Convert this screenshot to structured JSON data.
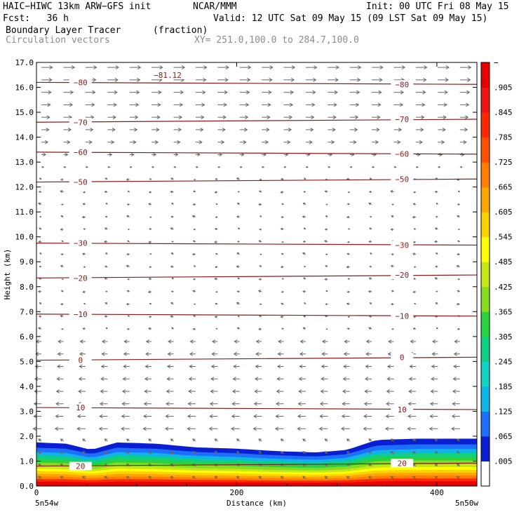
{
  "header": {
    "model": "HAIC−HIWC 13km ARW−GFS init",
    "org": "NCAR/MMM",
    "init": "Init: 00 UTC Fri 08 May 15",
    "fcst": "Fcst:   36 h",
    "valid": "Valid: 12 UTC Sat 09 May 15 (09 LST Sat 09 May 15)",
    "field": "Boundary Layer Tracer",
    "units": "(fraction)",
    "field2": "Circulation vectors",
    "xy": "XY= 251.0,100.0 to 284.7,100.0"
  },
  "chart_data": {
    "type": "heatmap",
    "xlabel": "Distance (km)",
    "ylabel": "Height (km)",
    "xlim": [
      0,
      440
    ],
    "ylim": [
      0,
      17
    ],
    "x_ticks": [
      "0",
      "200",
      "400"
    ],
    "x_end_labels": [
      "5n54w",
      "5n50w"
    ],
    "y_ticks": [
      "0.0",
      "1.0",
      "2.0",
      "3.0",
      "4.0",
      "5.0",
      "6.0",
      "7.0",
      "8.0",
      "9.0",
      "10.0",
      "11.0",
      "12.0",
      "13.0",
      "14.0",
      "15.0",
      "16.0",
      "17.0"
    ],
    "colorbar_labels": [
      ".005",
      ".065",
      ".125",
      ".185",
      ".245",
      ".305",
      ".365",
      ".425",
      ".485",
      ".545",
      ".605",
      ".665",
      ".725",
      ".785",
      ".845",
      ".905"
    ],
    "colorbar_top_label": "−",
    "colorbar_colors": [
      "#ffffff",
      "#0a1ed2",
      "#1e6eff",
      "#10b4e6",
      "#13d2c3",
      "#0fcf85",
      "#28d240",
      "#86dc1e",
      "#c6e61a",
      "#ffff00",
      "#fad200",
      "#ffa500",
      "#ff7d00",
      "#ff5000",
      "#ff2800",
      "#f01414",
      "#e60000"
    ],
    "tracer_layer": {
      "x": [
        0,
        30,
        55,
        80,
        120,
        160,
        200,
        240,
        280,
        310,
        340,
        380,
        420,
        440
      ],
      "top_km": [
        1.75,
        1.7,
        1.45,
        1.75,
        1.7,
        1.55,
        1.5,
        1.4,
        1.35,
        1.45,
        1.85,
        1.9,
        1.9,
        1.9
      ]
    },
    "temperature_contours": {
      "color": "#8b1a1a",
      "levels": [
        {
          "label": "20",
          "height_km": 0.8
        },
        {
          "label": "10",
          "height_km": 3.15
        },
        {
          "label": "0",
          "height_km": 5.05
        },
        {
          "label": "−10",
          "height_km": 6.9
        },
        {
          "label": "−20",
          "height_km": 8.35
        },
        {
          "label": "−30",
          "height_km": 9.75
        },
        {
          "label": "−50",
          "height_km": 12.2
        },
        {
          "label": "−60",
          "height_km": 13.4
        },
        {
          "label": "−70",
          "height_km": 14.6
        },
        {
          "label": "−80",
          "height_km": 16.2
        }
      ],
      "min_label": "−81.12"
    }
  }
}
